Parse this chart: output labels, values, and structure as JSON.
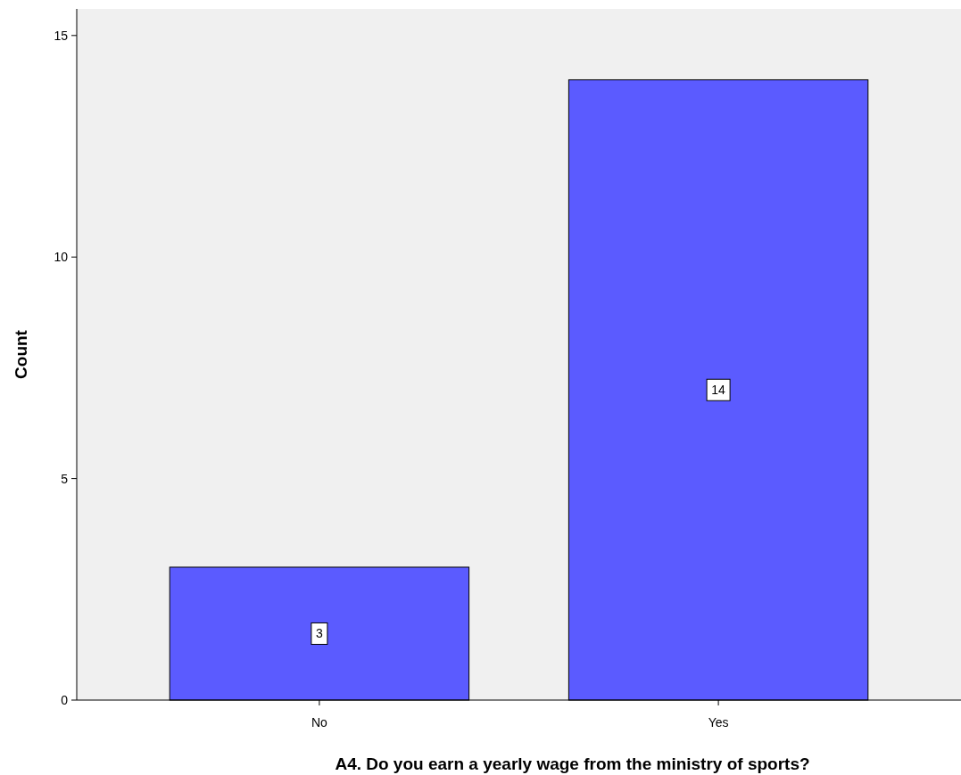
{
  "chart_data": {
    "type": "bar",
    "xlabel": "A4. Do you earn a yearly wage from the ministry of sports?",
    "ylabel": "Count",
    "categories": [
      "No",
      "Yes"
    ],
    "values": [
      3,
      14
    ],
    "color": "#5b5bff",
    "ylim": [
      0,
      15.6
    ],
    "yticks": [
      0,
      5,
      10,
      15
    ],
    "grid": false,
    "data_labels": true
  }
}
